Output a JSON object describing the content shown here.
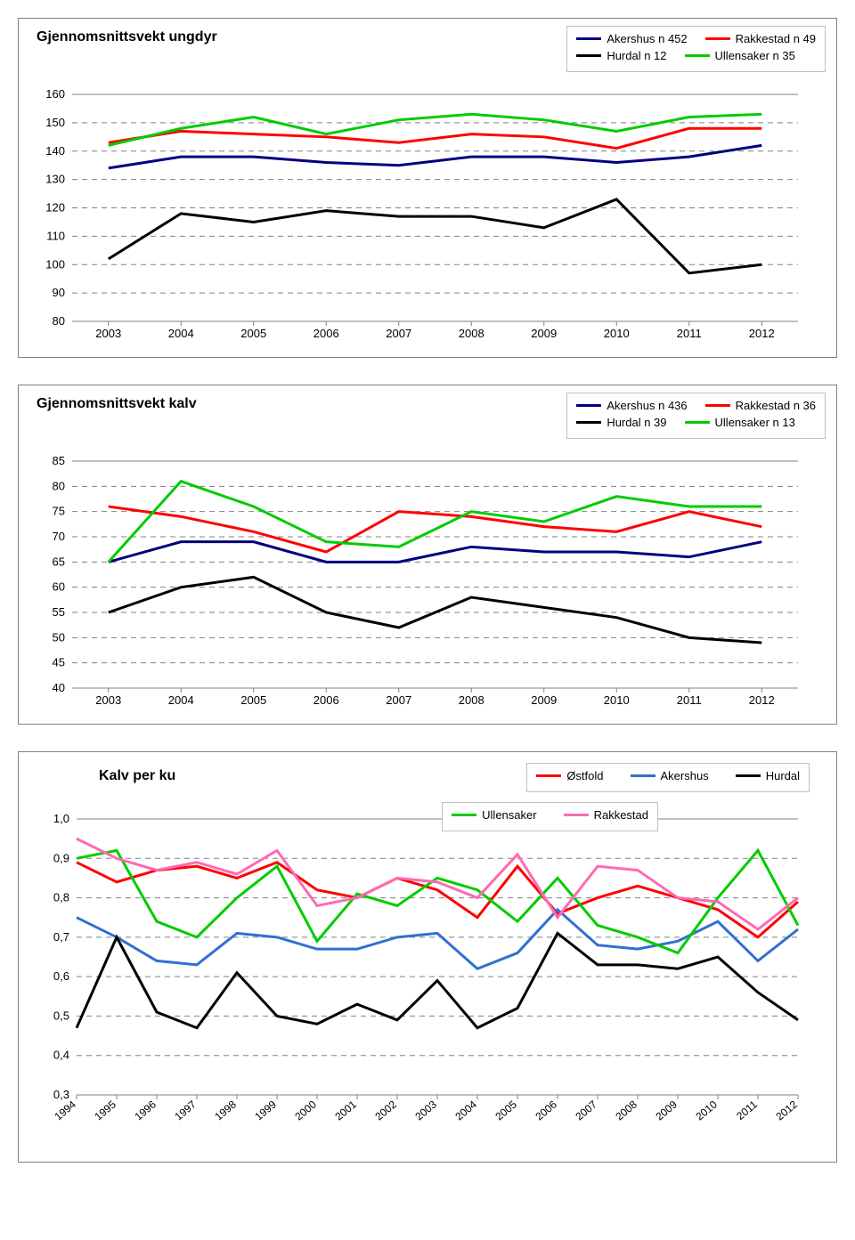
{
  "chart1": {
    "title": "Gjennomsnittsvekt ungdyr",
    "type": "line",
    "x_categories": [
      "2003",
      "2004",
      "2005",
      "2006",
      "2007",
      "2008",
      "2009",
      "2010",
      "2011",
      "2012"
    ],
    "ymin": 80,
    "ymax": 160,
    "ytick_step": 10,
    "title_fontsize": 16,
    "axis_fontsize": 13,
    "background_color": "#ffffff",
    "grid_color": "#808080",
    "grid_dash": "6 5",
    "line_width": 3,
    "legend_border_color": "#c0c0c0",
    "series": [
      {
        "name": "Akershus n 452",
        "color": "#000080",
        "values": [
          134,
          138,
          138,
          136,
          135,
          138,
          138,
          136,
          138,
          142
        ]
      },
      {
        "name": "Rakkestad n 49",
        "color": "#ff0000",
        "values": [
          143,
          147,
          146,
          145,
          143,
          146,
          145,
          141,
          148,
          148
        ]
      },
      {
        "name": "Hurdal n 12",
        "color": "#000000",
        "values": [
          102,
          118,
          115,
          119,
          117,
          117,
          113,
          123,
          97,
          100
        ]
      },
      {
        "name": "Ullensaker n 35",
        "color": "#00cc00",
        "values": [
          142,
          148,
          152,
          146,
          151,
          153,
          151,
          147,
          152,
          153
        ]
      }
    ]
  },
  "chart2": {
    "title": "Gjennomsnittsvekt kalv",
    "type": "line",
    "x_categories": [
      "2003",
      "2004",
      "2005",
      "2006",
      "2007",
      "2008",
      "2009",
      "2010",
      "2011",
      "2012"
    ],
    "ymin": 40,
    "ymax": 85,
    "ytick_step": 5,
    "title_fontsize": 16,
    "axis_fontsize": 13,
    "background_color": "#ffffff",
    "grid_color": "#808080",
    "grid_dash": "6 5",
    "line_width": 3,
    "legend_border_color": "#c0c0c0",
    "series": [
      {
        "name": "Akershus n 436",
        "color": "#000080",
        "values": [
          65,
          69,
          69,
          65,
          65,
          68,
          67,
          67,
          66,
          69
        ]
      },
      {
        "name": "Rakkestad n 36",
        "color": "#ff0000",
        "values": [
          76,
          74,
          71,
          67,
          75,
          74,
          72,
          71,
          75,
          72
        ]
      },
      {
        "name": "Hurdal n 39",
        "color": "#000000",
        "values": [
          55,
          60,
          62,
          55,
          52,
          58,
          56,
          54,
          50,
          49
        ]
      },
      {
        "name": "Ullensaker n 13",
        "color": "#00cc00",
        "values": [
          65,
          81,
          76,
          69,
          68,
          75,
          73,
          78,
          76,
          76
        ]
      }
    ]
  },
  "chart3": {
    "title": "Kalv per ku",
    "type": "line",
    "x_categories": [
      "1994",
      "1995",
      "1996",
      "1997",
      "1998",
      "1999",
      "2000",
      "2001",
      "2002",
      "2003",
      "2004",
      "2005",
      "2006",
      "2007",
      "2008",
      "2009",
      "2010",
      "2011",
      "2012"
    ],
    "ymin": 0.3,
    "ymax": 1.0,
    "ytick_step": 0.1,
    "title_fontsize": 16,
    "axis_fontsize": 13,
    "background_color": "#ffffff",
    "grid_color": "#808080",
    "grid_dash": "6 5",
    "line_width": 2.5,
    "legend_border_color": "#c0c0c0",
    "x_label_rotation": -45,
    "series": [
      {
        "name": "Østfold",
        "color": "#ff0000",
        "values": [
          0.89,
          0.84,
          0.87,
          0.88,
          0.85,
          0.89,
          0.82,
          0.8,
          0.85,
          0.82,
          0.75,
          0.88,
          0.76,
          0.8,
          0.83,
          0.8,
          0.77,
          0.7,
          0.79
        ]
      },
      {
        "name": "Akershus",
        "color": "#3070d0",
        "values": [
          0.75,
          0.7,
          0.64,
          0.63,
          0.71,
          0.7,
          0.67,
          0.67,
          0.7,
          0.71,
          0.62,
          0.66,
          0.77,
          0.68,
          0.67,
          0.69,
          0.74,
          0.64,
          0.72
        ]
      },
      {
        "name": "Hurdal",
        "color": "#000000",
        "values": [
          0.47,
          0.7,
          0.51,
          0.47,
          0.61,
          0.5,
          0.48,
          0.53,
          0.49,
          0.59,
          0.47,
          0.52,
          0.71,
          0.63,
          0.63,
          0.62,
          0.65,
          0.56,
          0.49
        ]
      },
      {
        "name": "Ullensaker",
        "color": "#00cc00",
        "values": [
          0.9,
          0.92,
          0.74,
          0.7,
          0.8,
          0.88,
          0.69,
          0.81,
          0.78,
          0.85,
          0.82,
          0.74,
          0.85,
          0.73,
          0.7,
          0.66,
          0.8,
          0.92,
          0.73
        ]
      },
      {
        "name": "Rakkestad",
        "color": "#ff69b4",
        "values": [
          0.95,
          0.9,
          0.87,
          0.89,
          0.86,
          0.92,
          0.78,
          0.8,
          0.85,
          0.84,
          0.8,
          0.91,
          0.75,
          0.88,
          0.87,
          0.8,
          0.79,
          0.72,
          0.8
        ]
      }
    ]
  }
}
